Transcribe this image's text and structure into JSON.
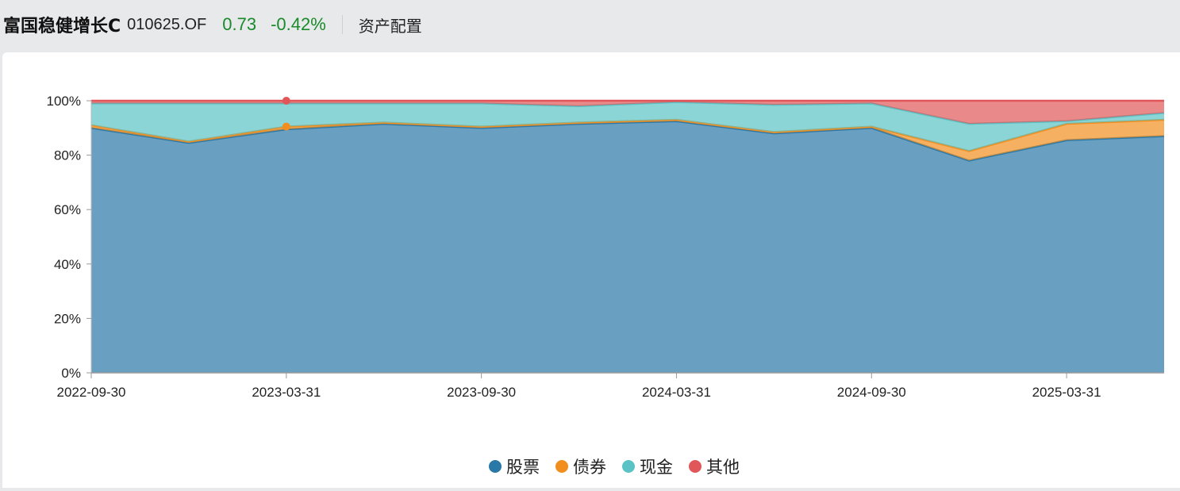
{
  "header": {
    "fund_name": "富国稳健增长C",
    "fund_code": "010625.OF",
    "nav": "0.73",
    "change": "-0.42%",
    "section": "资产配置"
  },
  "colors": {
    "stock": "#2a78a8",
    "bond": "#f28e1e",
    "cash": "#5bc3c6",
    "other": "#e15759",
    "up_down_text": "#1a8a2a"
  },
  "chart_data": {
    "type": "area",
    "stacked": true,
    "x": [
      "2022-09-30",
      "2022-12-31",
      "2023-03-31",
      "2023-06-30",
      "2023-09-30",
      "2023-12-31",
      "2024-03-31",
      "2024-06-30",
      "2024-09-30",
      "2024-12-31",
      "2025-03-31",
      "2025-06-30"
    ],
    "xticks": [
      "2022-09-30",
      "2023-03-31",
      "2023-09-30",
      "2024-03-31",
      "2024-09-30",
      "2025-03-31"
    ],
    "yticks": [
      "0%",
      "20%",
      "40%",
      "60%",
      "80%",
      "100%"
    ],
    "ylim": [
      0,
      100
    ],
    "series": [
      {
        "name": "股票",
        "color": "#2a78a8",
        "values": [
          90.0,
          84.5,
          89.5,
          91.5,
          90.0,
          91.5,
          92.5,
          88.0,
          90.0,
          78.0,
          85.5,
          87.0
        ]
      },
      {
        "name": "债券",
        "color": "#f28e1e",
        "values": [
          1.0,
          0.5,
          1.0,
          0.5,
          0.5,
          0.5,
          0.5,
          0.5,
          0.5,
          3.5,
          6.0,
          6.0
        ]
      },
      {
        "name": "现金",
        "color": "#5bc3c6",
        "values": [
          8.0,
          14.0,
          8.5,
          7.0,
          8.5,
          6.0,
          6.5,
          10.0,
          8.5,
          10.0,
          1.0,
          2.5
        ]
      },
      {
        "name": "其他",
        "color": "#e15759",
        "values": [
          1.0,
          1.0,
          1.0,
          1.0,
          1.0,
          2.0,
          0.5,
          1.5,
          1.0,
          8.5,
          7.5,
          4.5
        ]
      }
    ],
    "legend_position": "bottom-center",
    "grid": false
  }
}
